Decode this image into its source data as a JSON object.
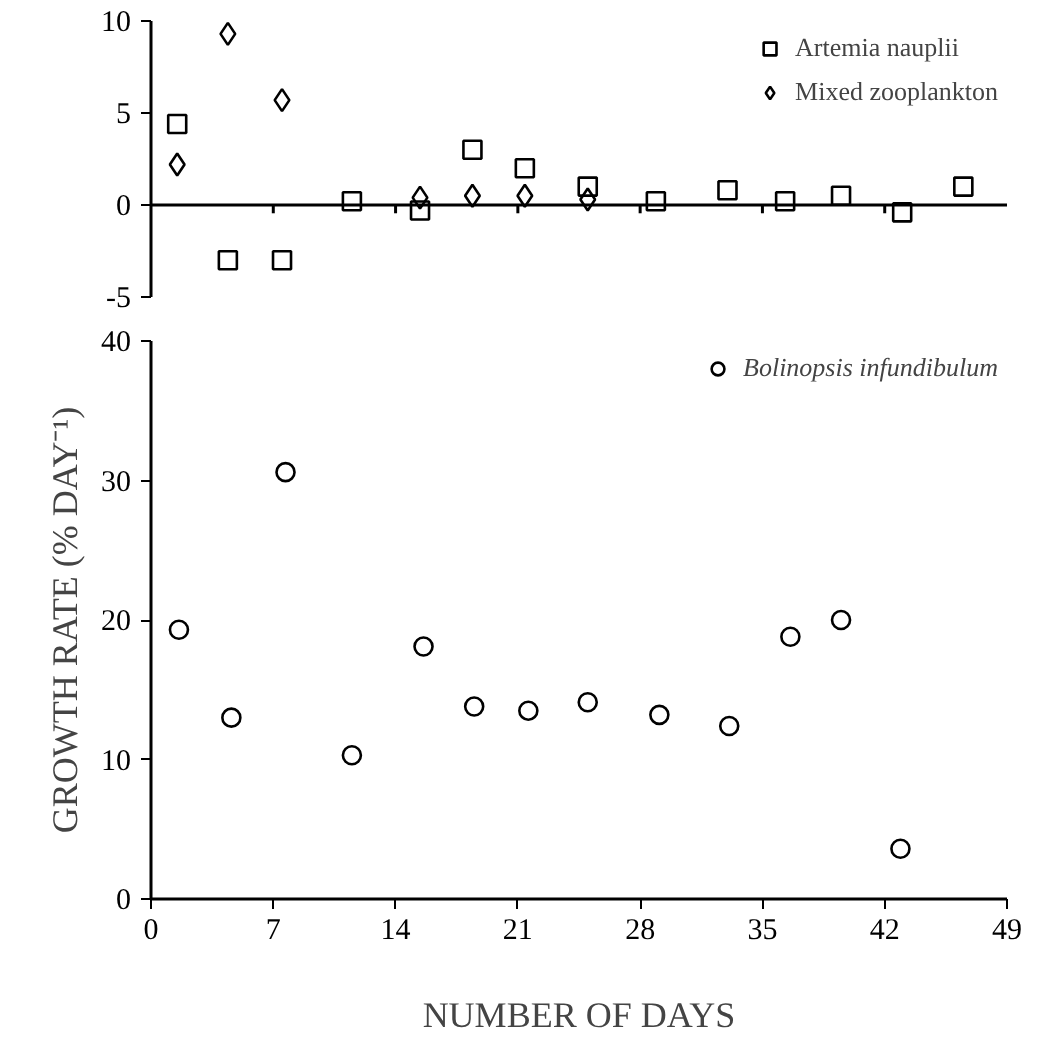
{
  "chart_data": [
    {
      "type": "scatter",
      "xlim": [
        0,
        49
      ],
      "xticks": [
        {
          "value": 7,
          "label": null
        },
        {
          "value": 14,
          "label": null
        },
        {
          "value": 21,
          "label": null
        },
        {
          "value": 28,
          "label": null
        },
        {
          "value": 35,
          "label": null
        },
        {
          "value": 42,
          "label": null
        }
      ],
      "ylim": [
        -5,
        10
      ],
      "yticks": [
        -5,
        0,
        5,
        10
      ],
      "tick_labels": "y",
      "grid": false,
      "legend": "top right",
      "ref_lines": [
        {
          "axis": "y",
          "value": 0
        }
      ],
      "series": [
        {
          "name": "Artemia nauplii",
          "color": "#000000",
          "marker": "square",
          "x": [
            1.5,
            4.4,
            7.5,
            11.5,
            15.4,
            18.4,
            21.4,
            25.0,
            28.9,
            33.0,
            36.3,
            39.5,
            43.0,
            46.5
          ],
          "values": [
            4.4,
            -3.0,
            -3.0,
            0.2,
            -0.3,
            3.0,
            2.0,
            1.0,
            0.2,
            0.8,
            0.2,
            0.5,
            -0.4,
            1.0
          ]
        },
        {
          "name": "Mixed zooplankton",
          "color": "#000000",
          "marker": "diamond",
          "x": [
            1.5,
            4.4,
            7.5,
            15.4,
            18.4,
            21.4,
            25.0
          ],
          "values": [
            2.2,
            9.3,
            5.7,
            0.4,
            0.5,
            0.5,
            0.3
          ]
        }
      ]
    },
    {
      "type": "scatter",
      "xlabel": "NUMBER OF DAYS",
      "ylabel": "GROWTH RATE (% DAY⁻¹)",
      "xlim": [
        0,
        49
      ],
      "xticks": [
        0,
        7,
        14,
        21,
        28,
        35,
        42,
        49
      ],
      "ylim": [
        0,
        40
      ],
      "yticks": [
        0,
        10,
        20,
        30,
        40
      ],
      "grid": false,
      "legend": "top right",
      "series": [
        {
          "name": "Bolinopsis infundibulum",
          "color": "#000000",
          "marker": "circle",
          "x": [
            1.6,
            4.6,
            7.7,
            11.5,
            15.6,
            18.5,
            21.6,
            25.0,
            29.1,
            33.1,
            36.6,
            39.5,
            42.9
          ],
          "values": [
            19.3,
            13.0,
            30.6,
            10.3,
            18.1,
            13.8,
            13.5,
            14.1,
            13.2,
            12.4,
            18.8,
            20.0,
            3.6
          ]
        }
      ]
    }
  ]
}
